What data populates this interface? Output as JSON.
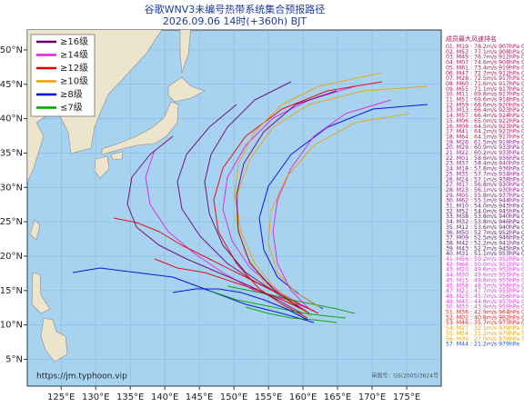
{
  "header": {
    "title": "谷歌WNV3未编号热带系统集合预报路径",
    "subtitle": "2026.09.06 14时(+360h) BJT"
  },
  "map": {
    "xlim": [
      120.1,
      180
    ],
    "ylim": [
      1.1,
      52.9
    ],
    "lon_ticks": [
      {
        "value": 125,
        "label": "125°E"
      },
      {
        "value": 130,
        "label": "130°E"
      },
      {
        "value": 135,
        "label": "135°E"
      },
      {
        "value": 140,
        "label": "140°E"
      },
      {
        "value": 145,
        "label": "145°E"
      },
      {
        "value": 150,
        "label": "150°E"
      },
      {
        "value": 155,
        "label": "155°E"
      },
      {
        "value": 160,
        "label": "160°E"
      },
      {
        "value": 165,
        "label": "165°E"
      },
      {
        "value": 170,
        "label": "170°E"
      },
      {
        "value": 175,
        "label": "175°E"
      }
    ],
    "lat_ticks": [
      {
        "value": 5,
        "label": "5°N"
      },
      {
        "value": 10,
        "label": "10°N"
      },
      {
        "value": 15,
        "label": "15°N"
      },
      {
        "value": 20,
        "label": "20°N"
      },
      {
        "value": 25,
        "label": "25°N"
      },
      {
        "value": 30,
        "label": "30°N"
      },
      {
        "value": 35,
        "label": "35°N"
      },
      {
        "value": 40,
        "label": "40°N"
      },
      {
        "value": 45,
        "label": "45°N"
      },
      {
        "value": 50,
        "label": "50°N"
      }
    ],
    "grid": true
  },
  "legend": [
    {
      "label": "≥16级",
      "color": "#6a006a"
    },
    {
      "label": "≥14级",
      "color": "#e020e0"
    },
    {
      "label": "≥12级",
      "color": "#e00000"
    },
    {
      "label": "≥10级",
      "color": "#f0a000"
    },
    {
      "label": "≥8级",
      "color": "#0000e0"
    },
    {
      "label": "≤7级",
      "color": "#00a000"
    }
  ],
  "footer": {
    "url": "https://jm.typhoon.vip",
    "approval": "审图号：GS(2005)3624号"
  },
  "ranking": {
    "title": "成员最大风速排名",
    "entries": [
      {
        "text": "01. M19 : 78.2m/s 907hPa C5",
        "color": "#b0185a"
      },
      {
        "text": "02. M53 : 77.1m/s 908hPa C5",
        "color": "#b0185a"
      },
      {
        "text": "03. M49 : 76.7m/s 912hPa C5",
        "color": "#b0185a"
      },
      {
        "text": "04. M07 : 74.6m/s 908hPa C5",
        "color": "#b0185a"
      },
      {
        "text": "05. M61 : 73.4m/s 919hPa C5",
        "color": "#b0185a"
      },
      {
        "text": "06. M47 : 72.7m/s 912hPa C5",
        "color": "#b0185a"
      },
      {
        "text": "07. M28 : 72.5m/s 917hPa C5",
        "color": "#b0185a"
      },
      {
        "text": "08. M60 : 71.6m/s 917hPa C5",
        "color": "#b0185a"
      },
      {
        "text": "09. M55 : 71.1m/s 917hPa C5",
        "color": "#b0185a"
      },
      {
        "text": "10. M11 : 69.8m/s 917hPa C5",
        "color": "#b0185a"
      },
      {
        "text": "11. M51 : 69.6m/s 918hPa C5",
        "color": "#b0185a"
      },
      {
        "text": "12. M59 : 68.6m/s 920hPa C5",
        "color": "#b0185a"
      },
      {
        "text": "13. M13 : 66.4m/s 923hPa C5",
        "color": "#b0185a"
      },
      {
        "text": "14. M57 : 66.4m/s 924hPa C5",
        "color": "#b0185a"
      },
      {
        "text": "15. M06 : 65.0m/s 922hPa C5",
        "color": "#b0185a"
      },
      {
        "text": "16. M08 : 64.5m/s 923hPa C5",
        "color": "#b0185a"
      },
      {
        "text": "17. M41 : 64.2m/s 921hPa C5",
        "color": "#b0185a"
      },
      {
        "text": "18. M64 : 64.1m/s 917hPa C5",
        "color": "#b0185a"
      },
      {
        "text": "19. M26 : 61.5m/s 919hPa C4",
        "color": "#8b1a8b"
      },
      {
        "text": "20. M29 : 60.9m/s 933hPa C4",
        "color": "#8b1a8b"
      },
      {
        "text": "21. M22 : 60.2m/s 933hPa C4",
        "color": "#8b1a8b"
      },
      {
        "text": "22. M01 : 58.6m/s 936hPa C4",
        "color": "#8b1a8b"
      },
      {
        "text": "23. M37 : 58.4m/s 940hPa C4",
        "color": "#8b1a8b"
      },
      {
        "text": "24. M18 : 57.8m/s 936hPa C4",
        "color": "#8b1a8b"
      },
      {
        "text": "25. M35 : 57.7m/s 934hPa C4",
        "color": "#8b1a8b"
      },
      {
        "text": "26. M24 : 57.1m/s 938hPa C4",
        "color": "#8b1a8b"
      },
      {
        "text": "27. M17 : 56.8m/s 930hPa C4",
        "color": "#8b1a8b"
      },
      {
        "text": "28. M23 : 56.1m/s 930hPa C4",
        "color": "#8b1a8b"
      },
      {
        "text": "29. M05 : 55.8m/s 937hPa C4",
        "color": "#8b1a8b"
      },
      {
        "text": "30. M62 : 55.1m/s 944hPa C4",
        "color": "#8b1a8b"
      },
      {
        "text": "31. M10 : 54.0m/s 943hPa C3",
        "color": "#5a1a6e"
      },
      {
        "text": "32. M52 : 54.0m/s 945hPa C3",
        "color": "#5a1a6e"
      },
      {
        "text": "33. M38 : 53.8m/s 940hPa C3",
        "color": "#5a1a6e"
      },
      {
        "text": "34. M32 : 53.8m/s 946hPa C3",
        "color": "#5a1a6e"
      },
      {
        "text": "35. M12 : 53.6m/s 940hPa C3",
        "color": "#5a1a6e"
      },
      {
        "text": "36. M50 : 52.7m/s 952hPa C3",
        "color": "#5a1a6e"
      },
      {
        "text": "37. M09 : 52.5m/s 946hPa C3",
        "color": "#5a1a6e"
      },
      {
        "text": "38. M42 : 52.2m/s 941hPa C3",
        "color": "#5a1a6e"
      },
      {
        "text": "39. M43 : 52.2m/s 945hPa C3",
        "color": "#5a1a6e"
      },
      {
        "text": "40. M31 : 51.1m/s 953hPa C3",
        "color": "#5a1a6e"
      },
      {
        "text": "41. M56 : 50.2m/s 952hPa C2",
        "color": "#e040e0"
      },
      {
        "text": "42. M66 : 50.0m/s 951hPa C2",
        "color": "#e040e0"
      },
      {
        "text": "43. M20 : 49.8m/s 952hPa C2",
        "color": "#e040e0"
      },
      {
        "text": "44. M30 : 49.6m/s 953hPa C2",
        "color": "#e040e0"
      },
      {
        "text": "45. M15 : 48.8m/s 955hPa C2",
        "color": "#e040e0"
      },
      {
        "text": "46. M58 : 48.3m/s 956hPa C2",
        "color": "#e040e0"
      },
      {
        "text": "47. M21 : 47.7m/s 955hPa C2",
        "color": "#e040e0"
      },
      {
        "text": "48. M25 : 45.7m/s 956hPa C2",
        "color": "#e040e0"
      },
      {
        "text": "49. M45 : 44.8m/s 957hPa C2",
        "color": "#e040e0"
      },
      {
        "text": "50. M33 : 43.9m/s 959hPa C2",
        "color": "#e040e0"
      },
      {
        "text": "51. M36 : 42.9m/s 964hPa C1",
        "color": "#e02020"
      },
      {
        "text": "52. M02 : 40.8m/s 962hPa C1",
        "color": "#e02020"
      },
      {
        "text": "53. M46 : 35.7m/s 973hPa C1",
        "color": "#e02020"
      },
      {
        "text": "54. M27 : 32.1m/s 979hPa TS",
        "color": "#f0a000"
      },
      {
        "text": "55. M54 : 31.2m/s 979hPa TS",
        "color": "#f0a000"
      },
      {
        "text": "56. M39 : 27.0m/s 979hPa TS",
        "color": "#f0a000"
      },
      {
        "text": "57. M44 : 21.2m/s 979hPa",
        "color": "#2050e0"
      }
    ]
  }
}
